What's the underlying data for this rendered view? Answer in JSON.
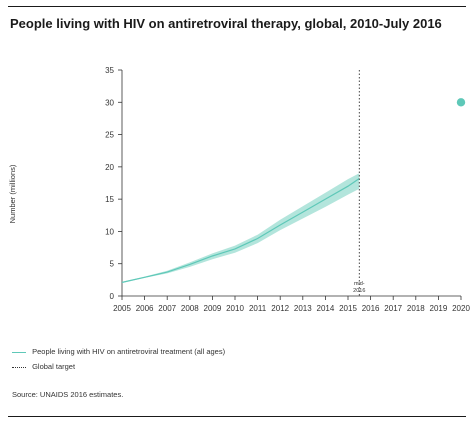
{
  "title": "People living with HIV on antiretroviral therapy, global, 2010-July 2016",
  "source": "Source: UNAIDS 2016 estimates.",
  "colors": {
    "accent": "#5ec8b8",
    "band": "#a6e0d6",
    "axis": "#333333"
  },
  "chart_data": {
    "type": "area",
    "xlabel": "",
    "ylabel": "Number (millions)",
    "xlim": [
      2005,
      2020
    ],
    "ylim": [
      0,
      35
    ],
    "x_ticks": [
      "2005",
      "2006",
      "2007",
      "2008",
      "2009",
      "2010",
      "2011",
      "2012",
      "2013",
      "2014",
      "2015",
      "2016",
      "2017",
      "2018",
      "2019",
      "2020"
    ],
    "y_ticks": [
      "0",
      "5",
      "10",
      "15",
      "20",
      "25",
      "30",
      "35"
    ],
    "grid": false,
    "legend_placement": "bottom-left",
    "series": [
      {
        "name": "People living with HIV on antiretroviral treatment (all ages)",
        "x": [
          2005,
          2006,
          2007,
          2008,
          2009,
          2010,
          2011,
          2012,
          2013,
          2014,
          2015,
          2015.5
        ],
        "y": [
          2.1,
          2.9,
          3.7,
          4.9,
          6.2,
          7.3,
          8.9,
          11.0,
          13.0,
          15.0,
          17.0,
          18.2
        ],
        "lower": [
          2.0,
          2.8,
          3.5,
          4.5,
          5.7,
          6.7,
          8.2,
          10.2,
          12.0,
          13.8,
          15.7,
          16.6
        ],
        "upper": [
          2.2,
          3.0,
          3.9,
          5.2,
          6.6,
          7.8,
          9.5,
          11.8,
          13.9,
          16.0,
          18.1,
          19.0
        ]
      },
      {
        "name": "Global target",
        "x": [
          2020
        ],
        "y": [
          30
        ]
      }
    ],
    "annotations": [
      {
        "x": 2015.5,
        "label": "mid-2016"
      }
    ]
  }
}
